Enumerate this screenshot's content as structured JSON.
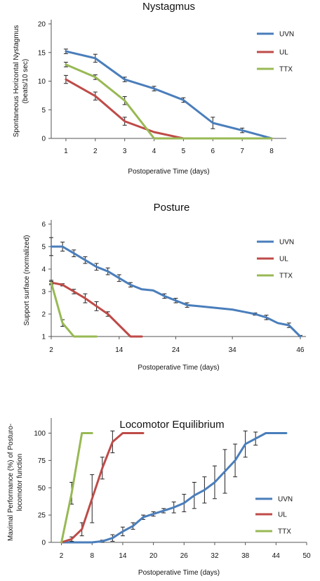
{
  "colors": {
    "UVN": "#4a7ebb",
    "UL": "#be4b48",
    "TTX": "#98b954"
  },
  "chart_data": [
    {
      "type": "line",
      "title": "Nystagmus",
      "xlabel": "Postoperative Time (days)",
      "ylabel": [
        "Spontaneous Horizontal Nystagmus",
        "(beats/10 sec)"
      ],
      "xlim": [
        0.5,
        8.5
      ],
      "ylim": [
        0,
        20
      ],
      "xticks": [
        1,
        2,
        3,
        4,
        5,
        6,
        7,
        8
      ],
      "yticks": [
        0,
        5,
        10,
        15,
        20
      ],
      "legend": "right",
      "series": [
        {
          "name": "UVN",
          "x": [
            1,
            2,
            3,
            4,
            5,
            6,
            7,
            8
          ],
          "y": [
            15.2,
            14,
            10.3,
            8.7,
            6.7,
            2.7,
            1.4,
            0
          ],
          "err": [
            0.4,
            0.7,
            0.4,
            0.4,
            0.4,
            1.0,
            0.4,
            0
          ]
        },
        {
          "name": "UL",
          "x": [
            1,
            2,
            3,
            4,
            5,
            6,
            7,
            8
          ],
          "y": [
            10.3,
            7.4,
            3,
            1.1,
            0,
            0,
            0,
            0
          ],
          "err": [
            0.7,
            0.7,
            0.7,
            0,
            0,
            0,
            0,
            0
          ]
        },
        {
          "name": "TTX",
          "x": [
            1,
            2,
            3,
            4,
            5,
            6,
            7,
            8
          ],
          "y": [
            12.9,
            10.7,
            6.6,
            0,
            0,
            0,
            0,
            0
          ],
          "err": [
            0.4,
            0.4,
            0.7,
            0,
            0,
            0,
            0,
            0
          ]
        }
      ]
    },
    {
      "type": "line",
      "title": "Posture",
      "xlabel": "Postoperative Time (days)",
      "ylabel": [
        "Support surface  (normalized)"
      ],
      "xlim": [
        2,
        47
      ],
      "ylim": [
        1,
        6
      ],
      "xticks": [
        2,
        14,
        24,
        34,
        46
      ],
      "yticks": [
        1,
        2,
        3,
        4,
        5,
        6
      ],
      "legend": "right",
      "series": [
        {
          "name": "UVN",
          "x": [
            2,
            4,
            6,
            8,
            10,
            12,
            14,
            16,
            18,
            20,
            22,
            24,
            26,
            28,
            30,
            32,
            34,
            36,
            38,
            40,
            42,
            44,
            46
          ],
          "y": [
            5.0,
            5.0,
            4.7,
            4.4,
            4.1,
            3.9,
            3.6,
            3.3,
            3.1,
            3.05,
            2.8,
            2.6,
            2.4,
            2.35,
            2.3,
            2.25,
            2.2,
            2.1,
            2.0,
            1.85,
            1.6,
            1.5,
            1.0
          ],
          "err": [
            0.4,
            0.2,
            0.15,
            0.15,
            0.15,
            0.15,
            0.15,
            0.1,
            0,
            0,
            0.1,
            0.1,
            0.1,
            0,
            0,
            0,
            0,
            0,
            0.05,
            0.1,
            0,
            0.1,
            0.05
          ]
        },
        {
          "name": "UL",
          "x": [
            2,
            4,
            6,
            8,
            10,
            12,
            14,
            16,
            18
          ],
          "y": [
            3.4,
            3.3,
            3.0,
            2.7,
            2.35,
            2.0,
            1.5,
            1.0,
            1.0
          ],
          "err": [
            0.1,
            0.05,
            0.1,
            0.2,
            0.2,
            0.1,
            0,
            0,
            0
          ]
        },
        {
          "name": "TTX",
          "x": [
            2,
            4,
            6,
            8,
            10
          ],
          "y": [
            3.4,
            1.6,
            1.0,
            1.0,
            1.0
          ],
          "err": [
            0.05,
            0.15,
            0,
            0,
            0
          ]
        }
      ]
    },
    {
      "type": "line",
      "title": "Locomotor Equilibrium",
      "xlabel": "Postoperative Time (days)",
      "ylabel": [
        "Maximal Performance (%) of Posturo-",
        "locomotor function"
      ],
      "xlim": [
        0,
        50
      ],
      "ylim": [
        0,
        110
      ],
      "xticks": [
        2,
        8,
        14,
        20,
        26,
        32,
        38,
        44,
        50
      ],
      "yticks": [
        0,
        25,
        50,
        75,
        100
      ],
      "legend": "right",
      "series": [
        {
          "name": "UVN",
          "x": [
            2,
            4,
            6,
            8,
            10,
            12,
            14,
            16,
            18,
            20,
            22,
            24,
            26,
            28,
            30,
            32,
            34,
            36,
            38,
            40,
            42,
            44,
            46
          ],
          "y": [
            0,
            0,
            0,
            0,
            1,
            4,
            10,
            15,
            23,
            26,
            29,
            32,
            36,
            43,
            48,
            55,
            65,
            75,
            90,
            95,
            100,
            100,
            100
          ],
          "err": [
            0,
            0,
            0,
            0,
            1,
            3,
            4,
            3,
            2,
            2,
            2,
            5,
            8,
            12,
            12,
            15,
            20,
            15,
            12,
            6,
            0,
            0,
            0
          ]
        },
        {
          "name": "UL",
          "x": [
            2,
            4,
            6,
            8,
            10,
            12,
            14,
            16,
            18
          ],
          "y": [
            0,
            3,
            12,
            40,
            68,
            92,
            100,
            100,
            100
          ],
          "err": [
            0,
            2,
            6,
            22,
            10,
            10,
            0,
            0,
            0
          ]
        },
        {
          "name": "TTX",
          "x": [
            2,
            4,
            6,
            8
          ],
          "y": [
            0,
            45,
            100,
            100
          ],
          "err": [
            0,
            10,
            0,
            0
          ]
        }
      ]
    }
  ]
}
